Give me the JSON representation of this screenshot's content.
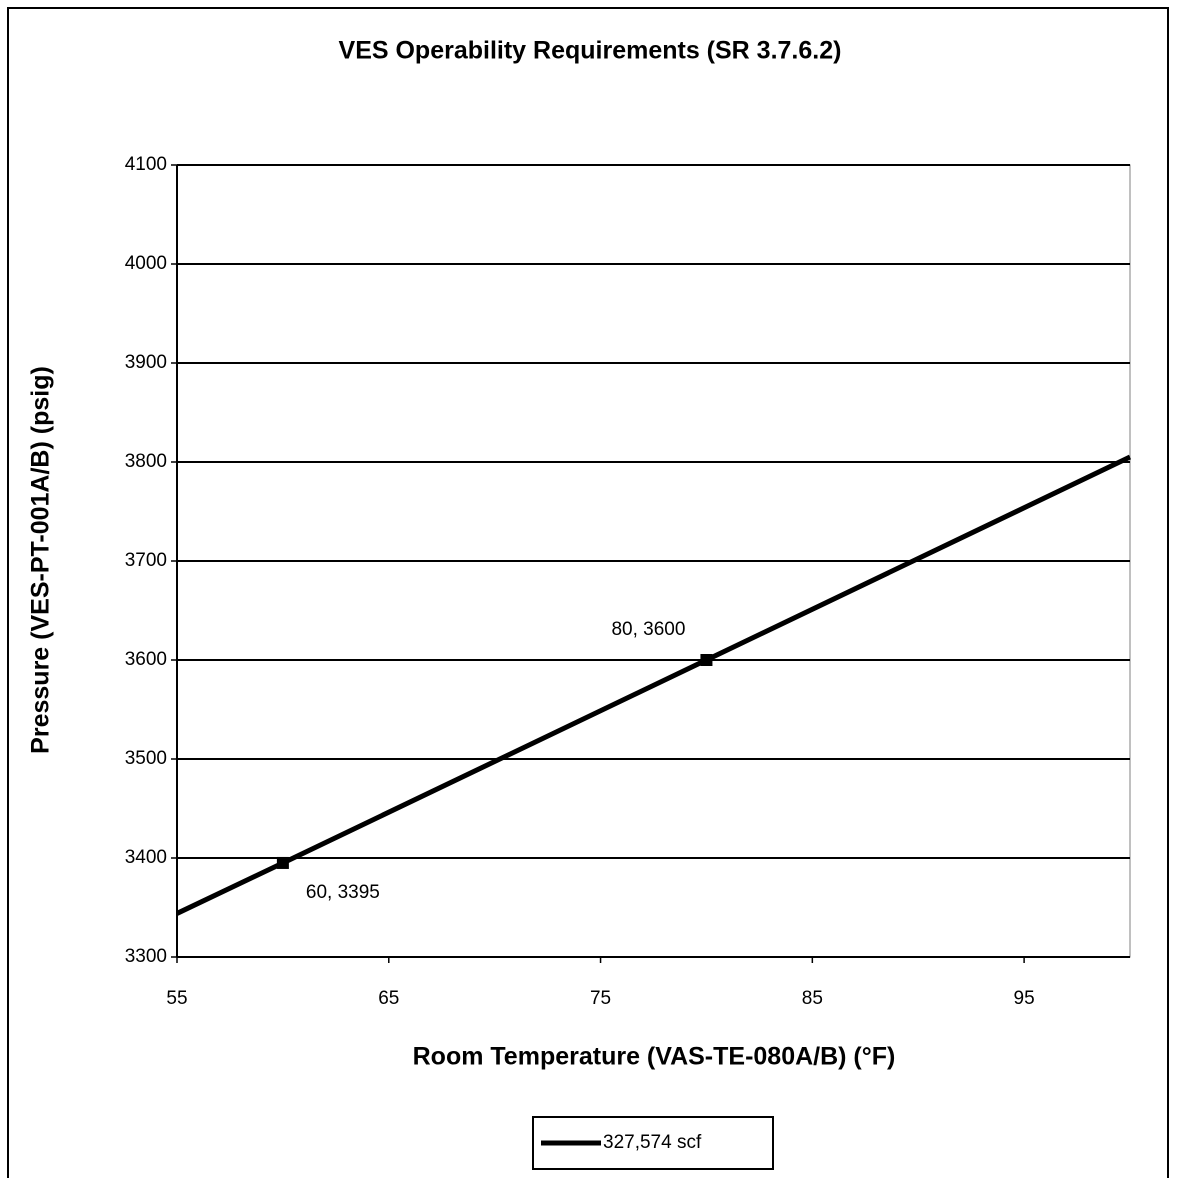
{
  "chart_data": {
    "type": "line",
    "title": "VES Operability Requirements (SR  3.7.6.2)",
    "x_label": "Room Temperature (VAS-TE-080A/B) (°F)",
    "y_label": "Pressure (VES-PT-001A/B) (psig)",
    "x": [
      55,
      60,
      80,
      100
    ],
    "series": [
      {
        "name": "327,574 scf",
        "color": "#000000",
        "values": [
          3344,
          3395,
          3600,
          3805
        ],
        "value_labels": [
          null,
          "60, 3395",
          "80, 3600",
          null
        ]
      }
    ],
    "xlim": [
      55,
      100
    ],
    "xticks": [
      55,
      65,
      75,
      85,
      95
    ],
    "ylim": [
      3300,
      4100
    ],
    "yticks": [
      3300,
      3400,
      3500,
      3600,
      3700,
      3800,
      3900,
      4000,
      4100
    ],
    "grid": true,
    "legend": "bottom"
  }
}
